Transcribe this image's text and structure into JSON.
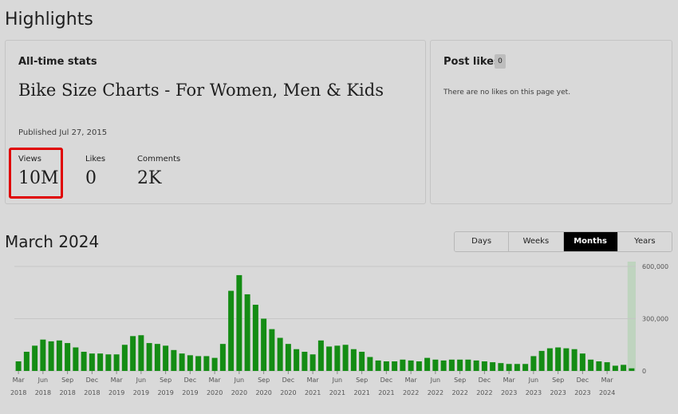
{
  "header": {
    "title": "Highlights"
  },
  "all_time": {
    "heading": "All-time stats",
    "post_title": "Bike Size Charts - For Women, Men & Kids",
    "published": "Published Jul 27, 2015",
    "views_label": "Views",
    "views_value": "10M",
    "likes_label": "Likes",
    "likes_value": "0",
    "comments_label": "Comments",
    "comments_value": "2K"
  },
  "post_likes": {
    "heading": "Post likes",
    "count": "0",
    "empty_text": "There are no likes on this page yet."
  },
  "period": {
    "title": "March 2024"
  },
  "tabs": [
    {
      "label": "Days",
      "active": false
    },
    {
      "label": "Weeks",
      "active": false
    },
    {
      "label": "Months",
      "active": true
    },
    {
      "label": "Years",
      "active": false
    }
  ],
  "colors": {
    "bar": "#148c14",
    "highlight": "#e00000",
    "selected_col": "#bfd4bf"
  },
  "chart_data": {
    "type": "bar",
    "ylim": [
      0,
      600000
    ],
    "y_ticks": [
      "0",
      "300,000",
      "600,000"
    ],
    "y_tick_values": [
      0,
      300000,
      600000
    ],
    "grid": true,
    "x_tick_labels": [
      {
        "month": "Mar",
        "year": "2018",
        "index": 0
      },
      {
        "month": "Jun",
        "year": "2018",
        "index": 3
      },
      {
        "month": "Sep",
        "year": "2018",
        "index": 6
      },
      {
        "month": "Dec",
        "year": "2018",
        "index": 9
      },
      {
        "month": "Mar",
        "year": "2019",
        "index": 12
      },
      {
        "month": "Jun",
        "year": "2019",
        "index": 15
      },
      {
        "month": "Sep",
        "year": "2019",
        "index": 18
      },
      {
        "month": "Dec",
        "year": "2019",
        "index": 21
      },
      {
        "month": "Mar",
        "year": "2020",
        "index": 24
      },
      {
        "month": "Jun",
        "year": "2020",
        "index": 27
      },
      {
        "month": "Sep",
        "year": "2020",
        "index": 30
      },
      {
        "month": "Dec",
        "year": "2020",
        "index": 33
      },
      {
        "month": "Mar",
        "year": "2021",
        "index": 36
      },
      {
        "month": "Jun",
        "year": "2021",
        "index": 39
      },
      {
        "month": "Sep",
        "year": "2021",
        "index": 42
      },
      {
        "month": "Dec",
        "year": "2021",
        "index": 45
      },
      {
        "month": "Mar",
        "year": "2022",
        "index": 48
      },
      {
        "month": "Jun",
        "year": "2022",
        "index": 51
      },
      {
        "month": "Sep",
        "year": "2022",
        "index": 54
      },
      {
        "month": "Dec",
        "year": "2022",
        "index": 57
      },
      {
        "month": "Mar",
        "year": "2023",
        "index": 60
      },
      {
        "month": "Jun",
        "year": "2023",
        "index": 63
      },
      {
        "month": "Sep",
        "year": "2023",
        "index": 66
      },
      {
        "month": "Dec",
        "year": "2023",
        "index": 69
      },
      {
        "month": "Mar",
        "year": "2024",
        "index": 72
      }
    ],
    "values": [
      55000,
      110000,
      145000,
      180000,
      170000,
      175000,
      160000,
      135000,
      110000,
      100000,
      100000,
      95000,
      95000,
      150000,
      200000,
      205000,
      160000,
      155000,
      145000,
      120000,
      100000,
      90000,
      85000,
      85000,
      75000,
      155000,
      460000,
      550000,
      440000,
      380000,
      300000,
      240000,
      190000,
      155000,
      125000,
      110000,
      95000,
      175000,
      140000,
      145000,
      150000,
      125000,
      110000,
      80000,
      60000,
      55000,
      55000,
      65000,
      60000,
      55000,
      75000,
      65000,
      60000,
      65000,
      65000,
      65000,
      60000,
      55000,
      50000,
      45000,
      40000,
      40000,
      40000,
      85000,
      115000,
      130000,
      135000,
      130000,
      125000,
      100000,
      65000,
      55000,
      50000,
      30000,
      35000,
      15000
    ],
    "selected_index": 75
  }
}
